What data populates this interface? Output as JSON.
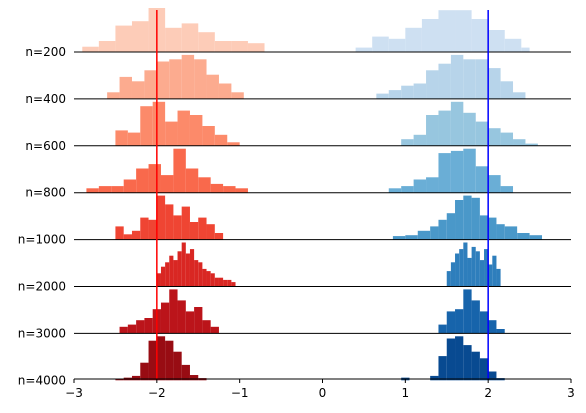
{
  "chart_data": {
    "type": "histogram-ridgeline",
    "title": "",
    "xlabel": "",
    "ylabel": "",
    "xlim": [
      -3,
      3
    ],
    "x_ticks": [
      -3,
      -2,
      -1,
      0,
      1,
      2,
      3
    ],
    "x_tick_labels": [
      "−3",
      "−2",
      "−1",
      "0",
      "1",
      "2",
      "3"
    ],
    "row_labels": [
      "n=200",
      "n=400",
      "n=600",
      "n=800",
      "n=1000",
      "n=2000",
      "n=3000",
      "n=4000"
    ],
    "vlines": [
      {
        "x": -2,
        "color": "#ff0000"
      },
      {
        "x": 2,
        "color": "#0000ff"
      }
    ],
    "left_colors": [
      "#fdccb8",
      "#fcab8f",
      "#fc8a6a",
      "#f9694c",
      "#ef4533",
      "#d92723",
      "#bb141a",
      "#980c13"
    ],
    "right_colors": [
      "#cee0f2",
      "#b7d4ea",
      "#97c6df",
      "#6aaed6",
      "#4a98c9",
      "#2e7ebc",
      "#1764ab",
      "#084a91"
    ],
    "left_series": [
      {
        "name": "n=200",
        "edges": [
          -2.9,
          -2.7,
          -2.5,
          -2.3,
          -2.1,
          -1.9,
          -1.7,
          -1.5,
          -1.3,
          -1.1,
          -0.9,
          -0.7
        ],
        "heights": [
          0.12,
          0.25,
          0.6,
          0.7,
          1.0,
          0.55,
          0.65,
          0.45,
          0.25,
          0.25,
          0.2
        ]
      },
      {
        "name": "n=400",
        "edges": [
          -2.6,
          -2.45,
          -2.3,
          -2.15,
          -2.0,
          -1.85,
          -1.7,
          -1.55,
          -1.4,
          -1.25,
          -1.1,
          -0.95
        ],
        "heights": [
          0.15,
          0.5,
          0.4,
          0.65,
          0.85,
          0.9,
          1.0,
          0.9,
          0.55,
          0.35,
          0.15
        ]
      },
      {
        "name": "n=600",
        "edges": [
          -2.5,
          -2.35,
          -2.2,
          -2.05,
          -1.9,
          -1.75,
          -1.6,
          -1.45,
          -1.3,
          -1.15,
          -1.0
        ],
        "heights": [
          0.35,
          0.3,
          0.9,
          1.0,
          0.55,
          0.8,
          0.7,
          0.45,
          0.25,
          0.08
        ]
      },
      {
        "name": "n=800",
        "edges": [
          -2.85,
          -2.7,
          -2.55,
          -2.4,
          -2.25,
          -2.1,
          -1.95,
          -1.8,
          -1.65,
          -1.5,
          -1.35,
          -1.2,
          -1.05,
          -0.9
        ],
        "heights": [
          0.1,
          0.15,
          0.15,
          0.3,
          0.55,
          0.65,
          0.4,
          1.0,
          0.55,
          0.35,
          0.2,
          0.15,
          0.1
        ]
      },
      {
        "name": "n=1000",
        "edges": [
          -2.5,
          -2.4,
          -2.3,
          -2.2,
          -2.1,
          -2.0,
          -1.9,
          -1.8,
          -1.7,
          -1.6,
          -1.5,
          -1.4,
          -1.3,
          -1.2
        ],
        "heights": [
          0.3,
          0.12,
          0.2,
          0.5,
          0.45,
          1.0,
          0.8,
          0.55,
          0.75,
          0.4,
          0.5,
          0.35,
          0.15
        ]
      },
      {
        "name": "n=2000",
        "edges": [
          -2.0,
          -1.95,
          -1.9,
          -1.85,
          -1.8,
          -1.75,
          -1.7,
          -1.65,
          -1.6,
          -1.55,
          -1.5,
          -1.45,
          -1.4,
          -1.35,
          -1.3,
          -1.25,
          -1.2,
          -1.15,
          -1.1,
          -1.05
        ],
        "heights": [
          0.3,
          0.45,
          0.55,
          0.7,
          0.6,
          0.8,
          1.0,
          0.75,
          0.85,
          0.6,
          0.55,
          0.4,
          0.35,
          0.3,
          0.2,
          0.2,
          0.15,
          0.15,
          0.1
        ]
      },
      {
        "name": "n=3000",
        "edges": [
          -2.45,
          -2.35,
          -2.25,
          -2.15,
          -2.05,
          -1.95,
          -1.85,
          -1.75,
          -1.65,
          -1.55,
          -1.45,
          -1.35,
          -1.25
        ],
        "heights": [
          0.15,
          0.2,
          0.3,
          0.35,
          0.55,
          0.7,
          1.0,
          0.75,
          0.5,
          0.6,
          0.3,
          0.15
        ]
      },
      {
        "name": "n=4000",
        "edges": [
          -2.5,
          -2.4,
          -2.3,
          -2.2,
          -2.1,
          -2.0,
          -1.9,
          -1.8,
          -1.7,
          -1.6,
          -1.5,
          -1.4
        ],
        "heights": [
          0.04,
          0.06,
          0.1,
          0.4,
          0.9,
          1.0,
          0.9,
          0.65,
          0.35,
          0.12,
          0.05
        ]
      }
    ],
    "right_series": [
      {
        "name": "n=200",
        "edges": [
          0.4,
          0.6,
          0.8,
          1.0,
          1.2,
          1.4,
          1.6,
          1.8,
          2.0,
          2.2,
          2.4,
          2.5
        ],
        "heights": [
          0.1,
          0.35,
          0.3,
          0.55,
          0.75,
          0.95,
          0.95,
          0.75,
          0.5,
          0.3,
          0.1
        ]
      },
      {
        "name": "n=400",
        "edges": [
          0.65,
          0.8,
          0.95,
          1.1,
          1.25,
          1.4,
          1.55,
          1.7,
          1.85,
          2.0,
          2.15,
          2.3,
          2.45
        ],
        "heights": [
          0.12,
          0.2,
          0.3,
          0.35,
          0.65,
          0.8,
          1.0,
          0.9,
          0.9,
          0.7,
          0.4,
          0.15
        ]
      },
      {
        "name": "n=600",
        "edges": [
          0.95,
          1.1,
          1.25,
          1.4,
          1.55,
          1.7,
          1.85,
          2.0,
          2.15,
          2.3,
          2.45,
          2.6
        ],
        "heights": [
          0.15,
          0.25,
          0.7,
          0.8,
          1.0,
          0.75,
          0.55,
          0.4,
          0.3,
          0.15,
          0.05
        ]
      },
      {
        "name": "n=800",
        "edges": [
          0.8,
          0.95,
          1.1,
          1.25,
          1.4,
          1.55,
          1.7,
          1.85,
          2.0,
          2.15,
          2.3
        ],
        "heights": [
          0.1,
          0.15,
          0.3,
          0.35,
          0.9,
          0.95,
          1.0,
          0.6,
          0.4,
          0.15
        ]
      },
      {
        "name": "n=1000",
        "edges": [
          0.85,
          1.0,
          1.15,
          1.3,
          1.4,
          1.5,
          1.6,
          1.7,
          1.8,
          1.9,
          2.0,
          2.1,
          2.2,
          2.35,
          2.5,
          2.65
        ],
        "heights": [
          0.08,
          0.1,
          0.2,
          0.3,
          0.45,
          0.6,
          0.9,
          1.0,
          0.95,
          0.55,
          0.5,
          0.35,
          0.3,
          0.15,
          0.1
        ]
      },
      {
        "name": "n=2000",
        "edges": [
          1.5,
          1.55,
          1.6,
          1.65,
          1.7,
          1.75,
          1.8,
          1.85,
          1.9,
          1.95,
          2.0,
          2.05,
          2.1,
          2.15
        ],
        "heights": [
          0.35,
          0.55,
          0.75,
          0.85,
          1.0,
          0.65,
          0.9,
          0.8,
          0.6,
          0.85,
          0.5,
          0.7,
          0.4
        ]
      },
      {
        "name": "n=3000",
        "edges": [
          1.4,
          1.5,
          1.6,
          1.7,
          1.8,
          1.9,
          2.0,
          2.1,
          2.2
        ],
        "heights": [
          0.2,
          0.5,
          0.55,
          1.0,
          0.75,
          0.5,
          0.3,
          0.1
        ]
      },
      {
        "name": "n=4000",
        "edges": [
          0.95,
          1.05,
          1.3,
          1.4,
          1.5,
          1.6,
          1.7,
          1.8,
          1.9,
          2.0,
          2.1,
          2.2
        ],
        "heights": [
          0.06,
          0.0,
          0.1,
          0.55,
          0.95,
          1.0,
          0.8,
          0.65,
          0.5,
          0.2,
          0.05
        ]
      }
    ]
  }
}
